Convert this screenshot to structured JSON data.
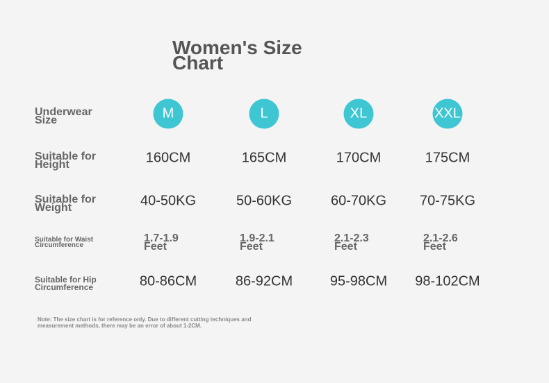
{
  "title": "Women's Size Chart",
  "rows": [
    {
      "label": "Underwear Size",
      "cells": [
        "M",
        "L",
        "XL",
        "XXL"
      ]
    },
    {
      "label": "Suitable for Height",
      "cells": [
        "160CM",
        "165CM",
        "170CM",
        "175CM"
      ]
    },
    {
      "label": "Suitable for Weight",
      "cells": [
        "40-50KG",
        "50-60KG",
        "60-70KG",
        "70-75KG"
      ]
    },
    {
      "label": "Suitable for Waist Circumference",
      "cells": [
        "1.7-1.9 Feet",
        "1.9-2.1 Feet",
        "2.1-2.3 Feet",
        "2.1-2.6 Feet"
      ]
    },
    {
      "label": "Suitable for Hip Circumference",
      "cells": [
        "80-86CM",
        "86-92CM",
        "95-98CM",
        "98-102CM"
      ]
    }
  ],
  "note": "Note: The size chart is for reference only. Due to different cutting techniques and measurement methods, there may be an error of about 1-2CM."
}
